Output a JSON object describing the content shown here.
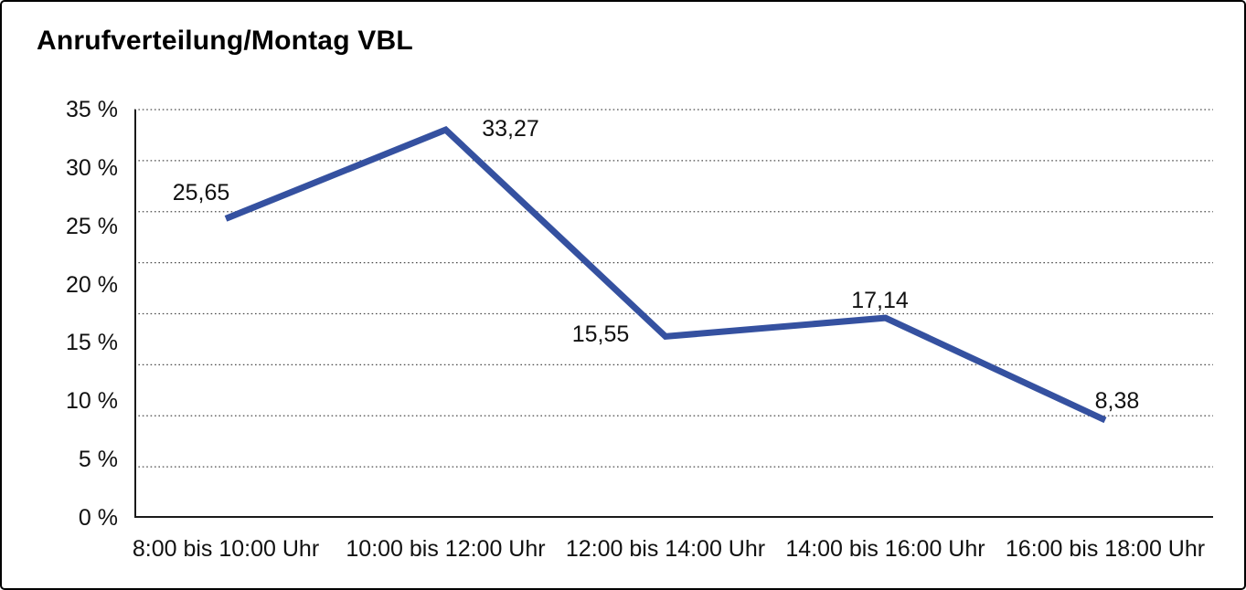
{
  "window": {
    "background_color": "#ffffff",
    "border_color": "#000000"
  },
  "chart_data": {
    "type": "line",
    "title": "Anrufverteilung/Montag VBL",
    "categories": [
      "8:00 bis 10:00 Uhr",
      "10:00 bis 12:00 Uhr",
      "12:00 bis 14:00 Uhr",
      "14:00 bis 16:00 Uhr",
      "16:00 bis 18:00 Uhr"
    ],
    "values": [
      25.65,
      33.27,
      15.55,
      17.14,
      8.38
    ],
    "point_labels": [
      "25,65",
      "33,27",
      "15,55",
      "17,14",
      "8,38"
    ],
    "y_ticks": [
      "35 %",
      "30 %",
      "25 %",
      "20 %",
      "15 %",
      "10 %",
      "5 %",
      "0 %"
    ],
    "ylim": [
      0,
      35
    ],
    "xlabel": "",
    "ylabel": "",
    "legend": "none",
    "grid": "dotted-horizontal",
    "line_color": "#3551A0",
    "grid_color": "#4d4d4d",
    "axis_color": "#1a1a1a",
    "text_color": "#111111"
  }
}
